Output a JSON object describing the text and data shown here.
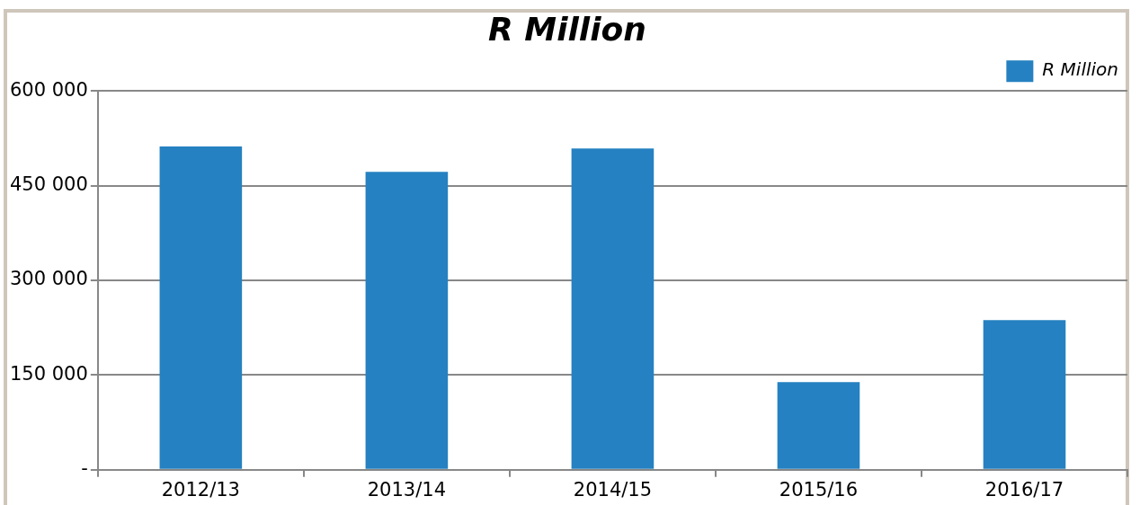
{
  "chart_data": {
    "type": "bar",
    "title": "R Million",
    "categories": [
      "2012/13",
      "2013/14",
      "2014/15",
      "2015/16",
      "2016/17"
    ],
    "series": [
      {
        "name": "R Million",
        "color": "#2581c1",
        "values": [
          512000,
          472000,
          509000,
          139000,
          237000
        ]
      }
    ],
    "ylim": [
      0,
      600000
    ],
    "yticks": [
      {
        "value": 0,
        "label": "-"
      },
      {
        "value": 150000,
        "label": "150 000"
      },
      {
        "value": 300000,
        "label": "300 000"
      },
      {
        "value": 450000,
        "label": "450 000"
      },
      {
        "value": 600000,
        "label": "600 000"
      }
    ],
    "grid": "y",
    "legend": "top right"
  }
}
